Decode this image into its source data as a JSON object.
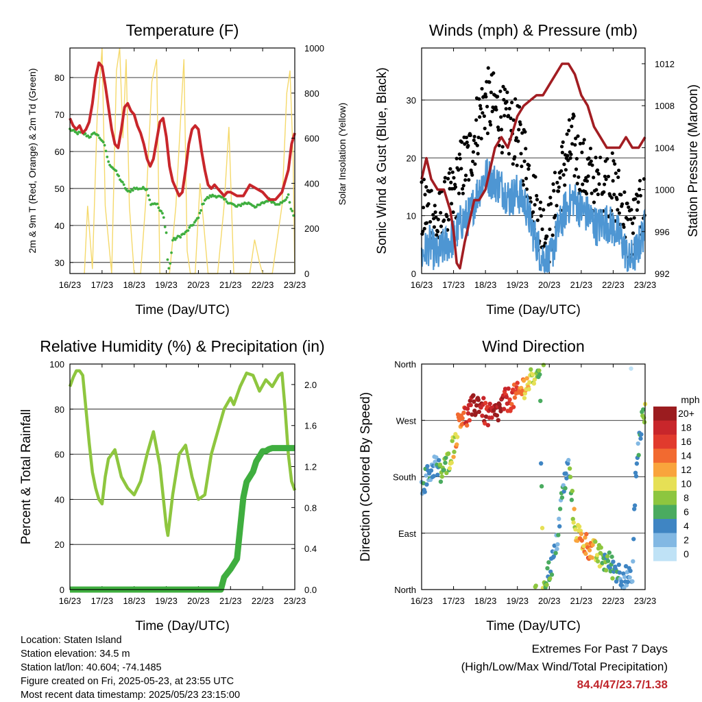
{
  "info": {
    "location": "Location: Staten Island",
    "elevation": "Station elevation: 34.5 m",
    "latlon": "Station lat/lon: 40.604; -74.1485",
    "created": "Figure created on Fri, 2025-05-23, at 23:55 UTC",
    "recent": "Most recent data timestamp: 2025/05/23 23:15:00"
  },
  "extremes": {
    "line1": "Extremes For Past 7 Days",
    "line2": "(High/Low/Max Wind/Total Precipitation)",
    "value": "84.4/47/23.7/1.38",
    "value_color": "#c0262c"
  },
  "colors": {
    "temp": "#c8262b",
    "dew": "#3fae3f",
    "solar": "#f5d96b",
    "gust": "#000000",
    "wind": "#4e96d3",
    "pressure": "#a21d22",
    "rh": "#8ec63f",
    "precip": "#3fae3f"
  },
  "chart_data": [
    {
      "type": "line",
      "title": "Temperature (F)",
      "xlabel": "Time (Day/UTC)",
      "ylabel": "2m & 9m T (Red, Orange) & 2m Td (Green)",
      "y2label": "Solar Insolation (Yellow)",
      "x_ticks": [
        "16/23",
        "17/23",
        "18/23",
        "19/23",
        "20/23",
        "21/23",
        "22/23",
        "23/23"
      ],
      "xlim": [
        0,
        7
      ],
      "ylim": [
        27,
        88
      ],
      "y_ticks": [
        30,
        40,
        50,
        60,
        70,
        80
      ],
      "y2lim": [
        0,
        1000
      ],
      "y2_ticks": [
        0,
        200,
        400,
        600,
        800,
        1000
      ],
      "grid": true,
      "series": [
        {
          "role": "temp",
          "x": [
            0,
            0.1,
            0.2,
            0.3,
            0.4,
            0.5,
            0.6,
            0.7,
            0.8,
            0.9,
            1.0,
            1.1,
            1.2,
            1.3,
            1.4,
            1.5,
            1.6,
            1.7,
            1.8,
            1.9,
            2.0,
            2.1,
            2.2,
            2.3,
            2.4,
            2.5,
            2.6,
            2.7,
            2.8,
            2.9,
            3.0,
            3.1,
            3.2,
            3.3,
            3.4,
            3.5,
            3.6,
            3.7,
            3.8,
            3.9,
            4.0,
            4.1,
            4.2,
            4.3,
            4.4,
            4.5,
            4.6,
            4.7,
            4.8,
            4.9,
            5.0,
            5.2,
            5.4,
            5.6,
            5.8,
            6.0,
            6.2,
            6.4,
            6.6,
            6.8,
            6.9,
            7.0
          ],
          "y": [
            69,
            67,
            66,
            67,
            65,
            66,
            68,
            73,
            80,
            84,
            83,
            78,
            72,
            66,
            62,
            61,
            66,
            72,
            73,
            71,
            70,
            67,
            65,
            62,
            58,
            56,
            58,
            63,
            68,
            69,
            64,
            56,
            52,
            50,
            48,
            49,
            55,
            62,
            66,
            67,
            66,
            60,
            55,
            51,
            50,
            51,
            50,
            49,
            48,
            49,
            49,
            48,
            48,
            51,
            50,
            49,
            47,
            47,
            49,
            55,
            62,
            65
          ]
        },
        {
          "role": "dew",
          "x": [
            0,
            0.2,
            0.4,
            0.6,
            0.8,
            1.0,
            1.1,
            1.2,
            1.4,
            1.6,
            1.8,
            2.0,
            2.2,
            2.4,
            2.5,
            2.7,
            2.8,
            2.9,
            3.0,
            3.05,
            3.1,
            3.2,
            3.4,
            3.6,
            3.8,
            4.0,
            4.1,
            4.2,
            4.4,
            4.6,
            4.8,
            5.0,
            5.2,
            5.4,
            5.6,
            5.8,
            6.0,
            6.2,
            6.4,
            6.6,
            6.8,
            6.9,
            7.0
          ],
          "y": [
            66,
            65,
            65,
            64,
            65,
            63,
            61,
            57,
            55,
            52,
            49,
            50,
            50,
            50,
            46,
            46,
            44,
            43,
            38,
            29,
            28,
            36,
            37,
            38,
            40,
            42,
            45,
            47,
            48,
            48,
            47,
            46,
            45,
            46,
            46,
            45,
            46,
            47,
            46,
            46,
            48,
            44,
            42
          ]
        },
        {
          "role": "solar",
          "x": [
            0.45,
            0.55,
            0.7,
            0.85,
            1.0,
            1.1,
            1.3,
            1.45,
            1.55,
            1.65,
            1.75,
            1.85,
            2.0,
            2.2,
            2.4,
            2.55,
            2.7,
            2.8,
            2.95,
            3.1,
            3.3,
            3.45,
            3.55,
            3.65,
            3.75,
            3.9,
            4.05,
            4.3,
            4.6,
            4.8,
            4.95,
            5.1,
            5.3,
            5.6,
            5.75,
            5.9,
            6.0,
            6.1,
            6.3,
            6.6,
            6.75,
            6.85,
            6.95,
            7.0
          ],
          "y": [
            0,
            300,
            20,
            700,
            1000,
            300,
            0,
            900,
            1000,
            600,
            950,
            300,
            0,
            0,
            400,
            850,
            950,
            0,
            0,
            0,
            300,
            700,
            950,
            100,
            0,
            0,
            400,
            0,
            0,
            300,
            650,
            0,
            0,
            0,
            150,
            50,
            0,
            0,
            0,
            300,
            800,
            900,
            500,
            0
          ]
        }
      ]
    },
    {
      "type": "line",
      "title": "Winds (mph) & Pressure (mb)",
      "xlabel": "Time (Day/UTC)",
      "ylabel": "Sonic Wind & Gust (Blue, Black)",
      "y2label": "Station Pressure (Maroon)",
      "x_ticks": [
        "16/23",
        "17/23",
        "18/23",
        "19/23",
        "20/23",
        "21/23",
        "22/23",
        "23/23"
      ],
      "xlim": [
        0,
        7
      ],
      "ylim": [
        0,
        39
      ],
      "y_ticks": [
        0,
        10,
        20,
        30
      ],
      "y2lim": [
        992,
        1013.5
      ],
      "y2_ticks": [
        992,
        996,
        1000,
        1004,
        1008,
        1012
      ],
      "grid": true,
      "series": [
        {
          "role": "gust",
          "x": [
            0,
            0.25,
            0.5,
            0.75,
            1.0,
            1.25,
            1.5,
            1.75,
            2.0,
            2.25,
            2.5,
            2.75,
            3.0,
            3.25,
            3.5,
            3.75,
            4.0,
            4.25,
            4.5,
            4.75,
            5.0,
            5.25,
            5.5,
            5.75,
            6.0,
            6.25,
            6.5,
            6.75,
            7.0
          ],
          "y": [
            10,
            12,
            8,
            11,
            13,
            18,
            20,
            26,
            30,
            29,
            27,
            25,
            24,
            20,
            13,
            8,
            7,
            14,
            20,
            22,
            18,
            17,
            14,
            16,
            15,
            12,
            7,
            9,
            12
          ]
        },
        {
          "role": "wind",
          "x": [
            0,
            0.25,
            0.5,
            0.75,
            1.0,
            1.25,
            1.5,
            1.75,
            2.0,
            2.25,
            2.5,
            2.75,
            3.0,
            3.25,
            3.5,
            3.75,
            4.0,
            4.25,
            4.5,
            4.75,
            5.0,
            5.25,
            5.5,
            5.75,
            6.0,
            6.25,
            6.5,
            6.75,
            7.0
          ],
          "y": [
            3,
            5,
            3,
            5,
            6,
            9,
            10,
            14,
            17,
            16,
            15,
            13,
            14,
            12,
            7,
            3,
            2,
            7,
            11,
            13,
            11,
            10,
            8,
            9,
            8,
            6,
            2,
            4,
            8
          ]
        },
        {
          "role": "pressure",
          "x": [
            0,
            0.15,
            0.3,
            0.5,
            0.7,
            0.9,
            1.0,
            1.1,
            1.2,
            1.35,
            1.5,
            1.65,
            1.8,
            2.0,
            2.15,
            2.3,
            2.5,
            2.7,
            2.9,
            3.0,
            3.2,
            3.4,
            3.6,
            3.8,
            4.0,
            4.2,
            4.4,
            4.6,
            4.8,
            5.0,
            5.2,
            5.4,
            5.6,
            5.8,
            6.0,
            6.2,
            6.4,
            6.6,
            6.8,
            7.0
          ],
          "y": [
            1001,
            1003,
            1001,
            1000,
            1000,
            998,
            996,
            993,
            992.5,
            995,
            997,
            999,
            999,
            1000,
            1002,
            1004,
            1005,
            1004,
            1006,
            1007,
            1008,
            1008.5,
            1009,
            1009,
            1010,
            1011,
            1012,
            1012,
            1011,
            1009,
            1008,
            1006,
            1005,
            1004,
            1004,
            1004,
            1005,
            1004,
            1004,
            1005
          ]
        }
      ]
    },
    {
      "type": "line",
      "title": "Relative Humidity (%) & Precipitation (in)",
      "xlabel": "Time (Day/UTC)",
      "ylabel": "Percent & Total Rainfall",
      "x_ticks": [
        "16/23",
        "17/23",
        "18/23",
        "19/23",
        "20/23",
        "21/23",
        "22/23",
        "23/23"
      ],
      "xlim": [
        0,
        7
      ],
      "ylim": [
        0,
        100
      ],
      "y_ticks": [
        0,
        20,
        40,
        60,
        80,
        100
      ],
      "y2lim": [
        0,
        2.2
      ],
      "y2_ticks": [
        "0.0",
        "0.4",
        "0.8",
        "1.2",
        "1.6",
        "2.0"
      ],
      "grid": true,
      "series": [
        {
          "role": "rh",
          "x": [
            0,
            0.1,
            0.2,
            0.3,
            0.4,
            0.5,
            0.6,
            0.7,
            0.8,
            0.9,
            1.0,
            1.1,
            1.2,
            1.4,
            1.6,
            1.8,
            2.0,
            2.2,
            2.4,
            2.6,
            2.8,
            3.0,
            3.05,
            3.2,
            3.4,
            3.6,
            3.8,
            4.0,
            4.2,
            4.4,
            4.6,
            4.8,
            5.0,
            5.1,
            5.3,
            5.5,
            5.7,
            5.9,
            6.1,
            6.3,
            6.5,
            6.6,
            6.7,
            6.8,
            6.9,
            7.0
          ],
          "y": [
            90,
            94,
            97,
            97,
            95,
            80,
            65,
            52,
            45,
            40,
            38,
            50,
            58,
            62,
            50,
            45,
            42,
            48,
            60,
            70,
            55,
            28,
            24,
            42,
            60,
            64,
            50,
            40,
            42,
            60,
            70,
            80,
            85,
            82,
            90,
            96,
            95,
            88,
            93,
            90,
            95,
            96,
            80,
            60,
            48,
            44
          ]
        },
        {
          "role": "precip",
          "x": [
            0,
            1,
            2,
            3,
            4,
            4.7,
            4.8,
            5.0,
            5.2,
            5.3,
            5.4,
            5.5,
            5.6,
            5.7,
            5.8,
            5.9,
            6.0,
            6.1,
            6.2,
            6.3,
            6.4,
            6.6,
            6.8,
            7.0
          ],
          "y": [
            0,
            0,
            0,
            0,
            0,
            0,
            0.12,
            0.2,
            0.3,
            0.6,
            0.9,
            1.05,
            1.1,
            1.15,
            1.25,
            1.3,
            1.35,
            1.35,
            1.37,
            1.38,
            1.38,
            1.38,
            1.38,
            1.38
          ]
        }
      ]
    },
    {
      "type": "scatter",
      "title": "Wind Direction",
      "xlabel": "Time (Day/UTC)",
      "ylabel": "Direction (Colored By Speed)",
      "x_ticks": [
        "16/23",
        "17/23",
        "18/23",
        "19/23",
        "20/23",
        "21/23",
        "22/23",
        "23/23"
      ],
      "xlim": [
        0,
        7
      ],
      "ylim": [
        0,
        360
      ],
      "y_tick_values": [
        0,
        90,
        180,
        270,
        360
      ],
      "y_tick_labels": [
        "North",
        "East",
        "South",
        "West",
        "North"
      ],
      "grid": true,
      "legend": {
        "title": "mph",
        "position": "right",
        "labels": [
          "20+",
          "18",
          "16",
          "14",
          "12",
          "10",
          "8",
          "6",
          "4",
          "2",
          "0"
        ],
        "colors": [
          "#9b1c1f",
          "#c8262b",
          "#e13a2d",
          "#f26a30",
          "#f9a43c",
          "#e6e055",
          "#8dc63f",
          "#4aab5f",
          "#3f85c3",
          "#82b8e3",
          "#bfe2f6"
        ]
      },
      "series": [
        {
          "name": "direction",
          "x": [
            0.0,
            0.2,
            0.4,
            0.6,
            0.8,
            1.0,
            1.1,
            1.2,
            1.4,
            1.6,
            1.8,
            2.0,
            2.2,
            2.4,
            2.6,
            2.8,
            3.0,
            3.2,
            3.4,
            3.5,
            3.6,
            3.7,
            3.8,
            4.0,
            4.2,
            4.4,
            4.6,
            4.8,
            5.0,
            5.2,
            5.4,
            5.6,
            5.8,
            6.0,
            6.2,
            6.4,
            6.6,
            6.7,
            6.8,
            6.9,
            7.0
          ],
          "y": [
            170,
            180,
            200,
            185,
            200,
            230,
            250,
            280,
            275,
            290,
            300,
            280,
            275,
            285,
            300,
            305,
            310,
            325,
            330,
            340,
            350,
            355,
            10,
            30,
            60,
            150,
            200,
            100,
            80,
            70,
            60,
            50,
            45,
            35,
            25,
            20,
            10,
            180,
            230,
            270,
            280
          ],
          "speed": [
            4,
            4,
            3,
            6,
            8,
            10,
            12,
            14,
            16,
            20,
            20,
            18,
            19,
            20,
            18,
            16,
            15,
            12,
            10,
            10,
            8,
            6,
            8,
            6,
            4,
            4,
            4,
            10,
            12,
            14,
            10,
            8,
            6,
            5,
            4,
            3,
            2,
            3,
            4,
            6,
            8
          ]
        }
      ]
    }
  ]
}
